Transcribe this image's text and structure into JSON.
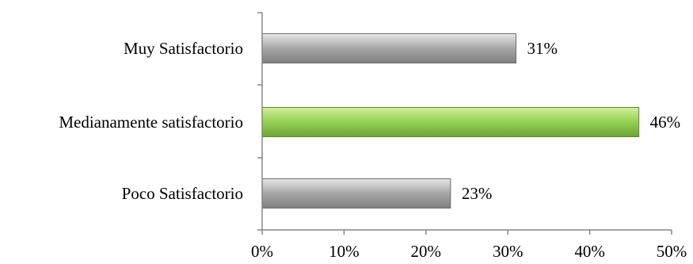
{
  "chart_data": {
    "type": "bar",
    "orientation": "horizontal",
    "title": "",
    "xlabel": "",
    "ylabel": "",
    "categories": [
      "Muy Satisfactorio",
      "Medianamente satisfactorio",
      "Poco Satisfactorio"
    ],
    "values": [
      31,
      46,
      23
    ],
    "value_labels": [
      "31%",
      "46%",
      "23%"
    ],
    "xlim": [
      0,
      50
    ],
    "x_ticks": [
      0,
      10,
      20,
      30,
      40,
      50
    ],
    "x_tick_labels": [
      "0%",
      "10%",
      "20%",
      "30%",
      "40%",
      "50%"
    ],
    "grid": false,
    "legend": "none",
    "colors": {
      "default_bar": "#a6a6a6",
      "highlight_bar": "#92d050",
      "axis": "#868686"
    },
    "highlight_index": 1
  }
}
